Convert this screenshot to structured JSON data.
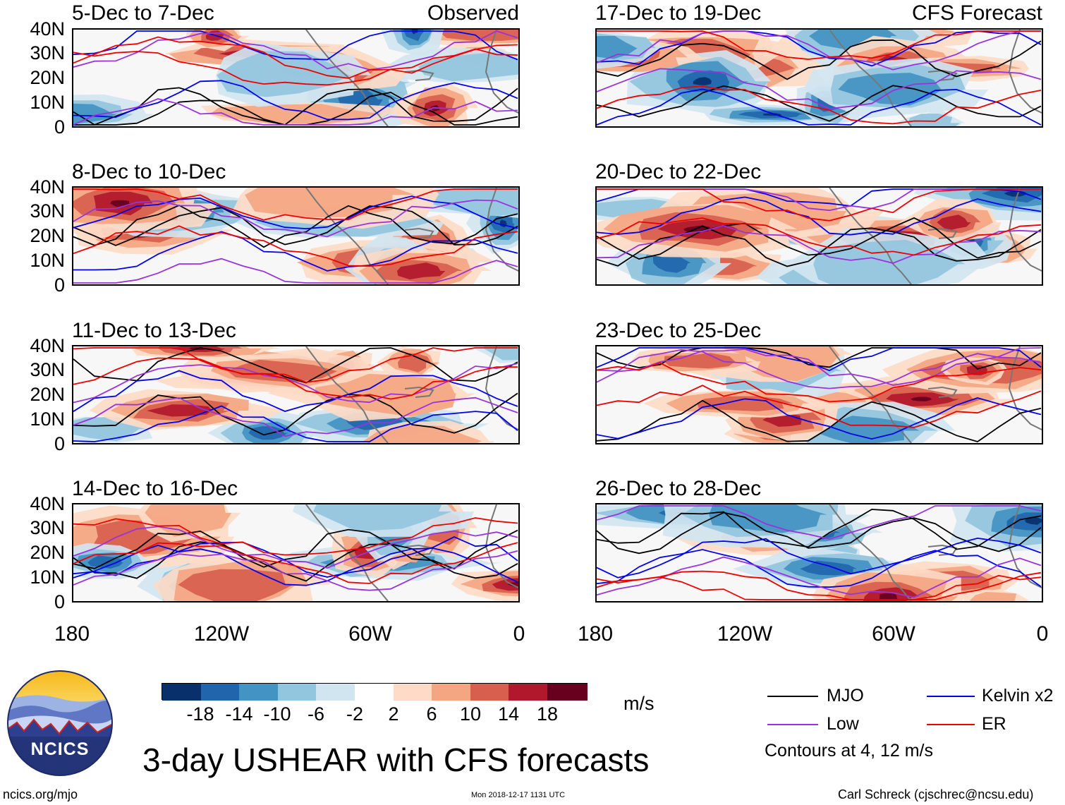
{
  "product_title": "3-day USHEAR with CFS forecasts",
  "left_column_tag": "Observed",
  "right_column_tag": "CFS Forecast",
  "panels_left": [
    "5-Dec to 7-Dec",
    "8-Dec to 10-Dec",
    "11-Dec to 13-Dec",
    "14-Dec to 16-Dec"
  ],
  "panels_right": [
    "17-Dec to 19-Dec",
    "20-Dec to 22-Dec",
    "23-Dec to 25-Dec",
    "26-Dec to 28-Dec"
  ],
  "lat_labels": [
    "40N",
    "30N",
    "20N",
    "10N",
    "0"
  ],
  "lon_labels": [
    "180",
    "120W",
    "60W",
    "0"
  ],
  "colorbar": {
    "labels": [
      "-18",
      "-14",
      "-10",
      "-6",
      "-2",
      "2",
      "6",
      "10",
      "14",
      "18"
    ],
    "colors": [
      "#08306b",
      "#2166ac",
      "#4393c3",
      "#92c5de",
      "#d1e5f0",
      "#ffffff",
      "#fddbc7",
      "#f4a582",
      "#d6604d",
      "#b2182b",
      "#67001f"
    ],
    "units": "m/s"
  },
  "legend": {
    "items": [
      {
        "label": "MJO",
        "color": "#000000"
      },
      {
        "label": "Kelvin x2",
        "color": "#0000ee"
      },
      {
        "label": "Low",
        "color": "#9933dd"
      },
      {
        "label": "ER",
        "color": "#ee0000"
      }
    ],
    "note": "Contours at 4, 12 m/s"
  },
  "logo_text": "NCICS",
  "footer": {
    "url": "ncics.org/mjo",
    "timestamp": "Mon 2018-12-17 1131 UTC",
    "credit": "Carl Schreck (cjschrec@ncsu.edu)"
  }
}
